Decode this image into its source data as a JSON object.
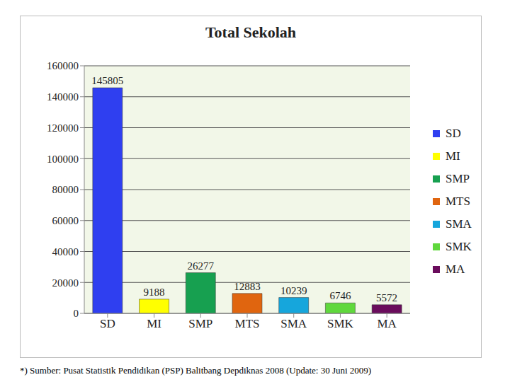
{
  "chart_data": {
    "type": "bar",
    "title": "Total Sekolah",
    "categories": [
      "SD",
      "MI",
      "SMP",
      "MTS",
      "SMA",
      "SMK",
      "MA"
    ],
    "values": [
      145805,
      9188,
      26277,
      12883,
      10239,
      6746,
      5572
    ],
    "colors": [
      "#2f3ff0",
      "#ffff00",
      "#17a050",
      "#e0650f",
      "#16a6dc",
      "#5fd83c",
      "#6a0c5c"
    ],
    "ylim": [
      0,
      160000
    ],
    "yticks": [
      0,
      20000,
      40000,
      60000,
      80000,
      100000,
      120000,
      140000,
      160000
    ],
    "grid": true,
    "data_labels": true,
    "legend": "right",
    "annotations": [
      "*) Sumber: Pusat Statistik Pendidikan (PSP) Balitbang Depdiknas 2008 (Update: 30 Juni 2009)"
    ]
  }
}
